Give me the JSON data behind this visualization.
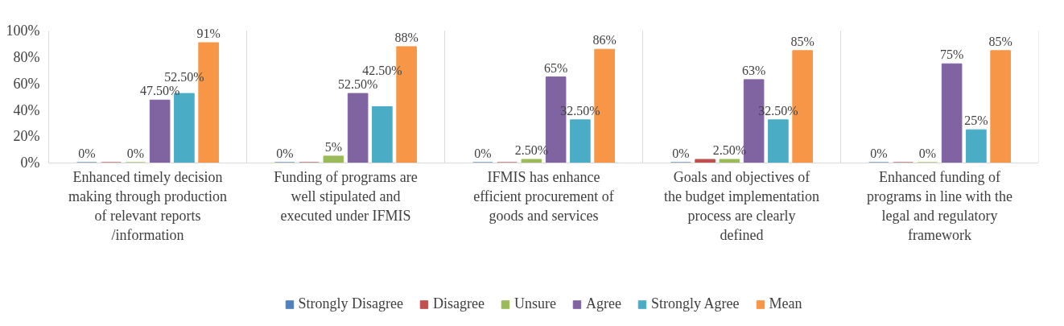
{
  "chart_data": {
    "type": "bar",
    "categories": [
      "Enhanced timely decision making through production of relevant reports /information",
      "Funding of programs are well stipulated and executed under IFMIS",
      "IFMIS has enhance efficient procurement of goods and services",
      "Goals and objectives of the budget implementation process are clearly defined",
      "Enhanced funding of programs in line with the legal and regulatory framework"
    ],
    "series": [
      {
        "name": "Strongly Disagree",
        "color": "#4f81bd",
        "values": [
          0,
          0,
          0,
          0,
          0
        ],
        "value_labels": [
          "0%",
          "0%",
          "0%",
          "0%",
          "0%"
        ]
      },
      {
        "name": "Disagree",
        "color": "#c0504d",
        "values": [
          0,
          0,
          0,
          2.5,
          0
        ],
        "value_labels": [
          null,
          null,
          null,
          null,
          null
        ]
      },
      {
        "name": "Unsure",
        "color": "#9bbb59",
        "values": [
          0,
          5,
          2.5,
          2.5,
          0
        ],
        "value_labels": [
          "0%",
          "5%",
          "2.50%",
          "2.50%",
          "0%"
        ]
      },
      {
        "name": "Agree",
        "color": "#8064a2",
        "values": [
          47.5,
          52.5,
          65,
          63,
          75
        ],
        "value_labels": [
          "47.50%",
          "52.50%",
          "65%",
          "63%",
          "75%"
        ]
      },
      {
        "name": "Strongly Agree",
        "color": "#4bacc6",
        "values": [
          52.5,
          42.5,
          32.5,
          32.5,
          25
        ],
        "value_labels": [
          "52.50%",
          "42.50%",
          "32.50%",
          "32.50%",
          "25%"
        ]
      },
      {
        "name": "Mean",
        "color": "#f79646",
        "values": [
          91,
          88,
          86,
          85,
          85
        ],
        "value_labels": [
          "91%",
          "88%",
          "86%",
          "85%",
          "85%"
        ]
      }
    ],
    "ylim": [
      0,
      100
    ],
    "yticks": [
      {
        "value": 0,
        "label": "0%"
      },
      {
        "value": 20,
        "label": "20%"
      },
      {
        "value": 40,
        "label": "40%"
      },
      {
        "value": 60,
        "label": "60%"
      },
      {
        "value": 80,
        "label": "80%"
      },
      {
        "value": 100,
        "label": "100%"
      }
    ],
    "grid": "x",
    "legend": "bottom"
  }
}
